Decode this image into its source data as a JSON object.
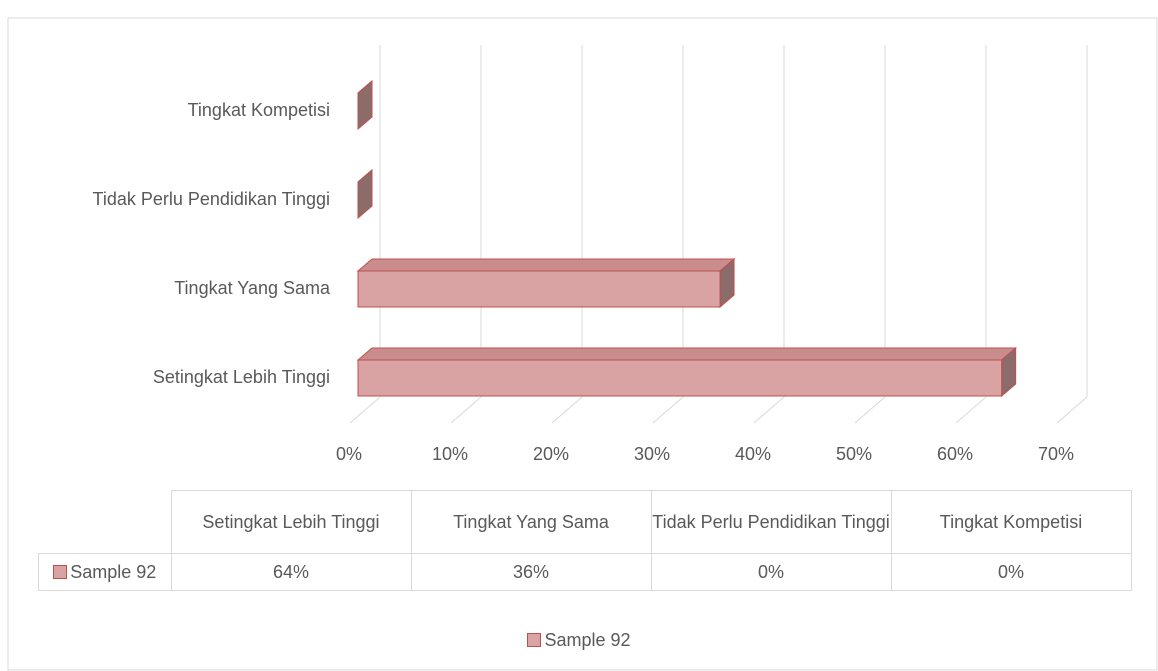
{
  "chart_data": {
    "type": "bar3d_horizontal",
    "categories": [
      "Setingkat Lebih Tinggi",
      "Tingkat Yang Sama",
      "Tidak Perlu Pendidikan Tinggi",
      "Tingkat Kompetisi"
    ],
    "series": [
      {
        "name": "Sample 92",
        "color": "#d9a3a3",
        "values": [
          64,
          36,
          0,
          0
        ],
        "value_labels": [
          "64%",
          "36%",
          "0%",
          "0%"
        ]
      }
    ],
    "xlim": [
      0,
      70
    ],
    "xticks": [
      {
        "value": 0,
        "label": "0%"
      },
      {
        "value": 10,
        "label": "10%"
      },
      {
        "value": 20,
        "label": "20%"
      },
      {
        "value": 30,
        "label": "30%"
      },
      {
        "value": 40,
        "label": "40%"
      },
      {
        "value": 50,
        "label": "50%"
      },
      {
        "value": 60,
        "label": "60%"
      },
      {
        "value": 70,
        "label": "70%"
      }
    ],
    "grid": true,
    "legend": "bottom",
    "data_table": true
  }
}
